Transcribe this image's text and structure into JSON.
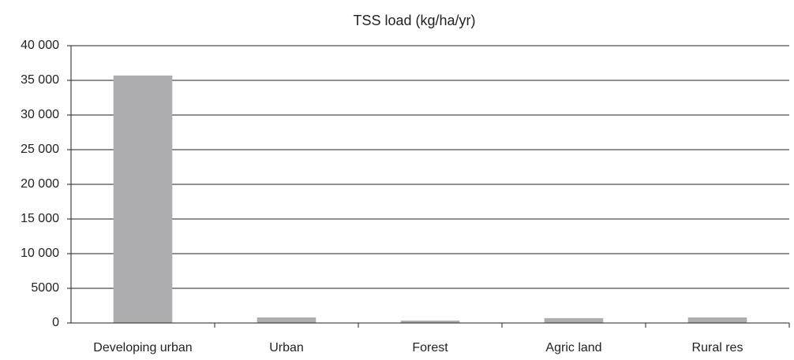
{
  "chart_data": {
    "type": "bar",
    "title": "TSS load (kg/ha/yr)",
    "categories": [
      "Developing urban",
      "Urban",
      "Forest",
      "Agric land",
      "Rural res"
    ],
    "values": [
      35700,
      800,
      350,
      700,
      800
    ],
    "color": "#aeaeb0",
    "ylim": [
      0,
      40000
    ],
    "yticks": [
      0,
      5000,
      {
        "value": 10000,
        "label": "10 000"
      },
      {
        "value": 15000,
        "label": "15 000"
      },
      {
        "value": 20000,
        "label": "20 000"
      },
      {
        "value": 25000,
        "label": "25 000"
      },
      {
        "value": 30000,
        "label": "30 000"
      },
      {
        "value": 35000,
        "label": "35 000"
      },
      {
        "value": 40000,
        "label": "40 000"
      }
    ],
    "grid": true
  }
}
